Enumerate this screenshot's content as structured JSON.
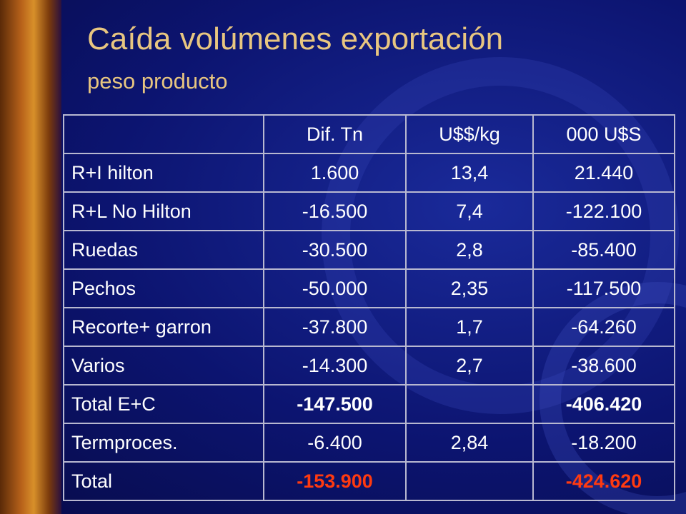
{
  "title": "Caída volúmenes exportación",
  "subtitle": "peso producto",
  "table": {
    "columns": [
      "Dif. Tn",
      "U$$/kg",
      "000 U$S"
    ],
    "rows": [
      {
        "label": "R+I hilton",
        "dif_tn": "1.600",
        "usd_kg": "13,4",
        "miles_usd": "21.440"
      },
      {
        "label": "R+L No Hilton",
        "dif_tn": "-16.500",
        "usd_kg": "7,4",
        "miles_usd": "-122.100"
      },
      {
        "label": "Ruedas",
        "dif_tn": "-30.500",
        "usd_kg": "2,8",
        "miles_usd": "-85.400"
      },
      {
        "label": "Pechos",
        "dif_tn": "-50.000",
        "usd_kg": "2,35",
        "miles_usd": "-117.500"
      },
      {
        "label": "Recorte+ garron",
        "dif_tn": "-37.800",
        "usd_kg": "1,7",
        "miles_usd": "-64.260"
      },
      {
        "label": "Varios",
        "dif_tn": "-14.300",
        "usd_kg": "2,7",
        "miles_usd": "-38.600"
      },
      {
        "label": "Total E+C",
        "dif_tn": "-147.500",
        "miles_usd": "-406.420",
        "emphasis": "bold"
      },
      {
        "label": "Termproces.",
        "dif_tn": "-6.400",
        "usd_kg": "2,84",
        "miles_usd": "-18.200"
      },
      {
        "label": "Total",
        "dif_tn": "-153.900",
        "miles_usd": "-424.620",
        "emphasis": "red"
      }
    ]
  }
}
